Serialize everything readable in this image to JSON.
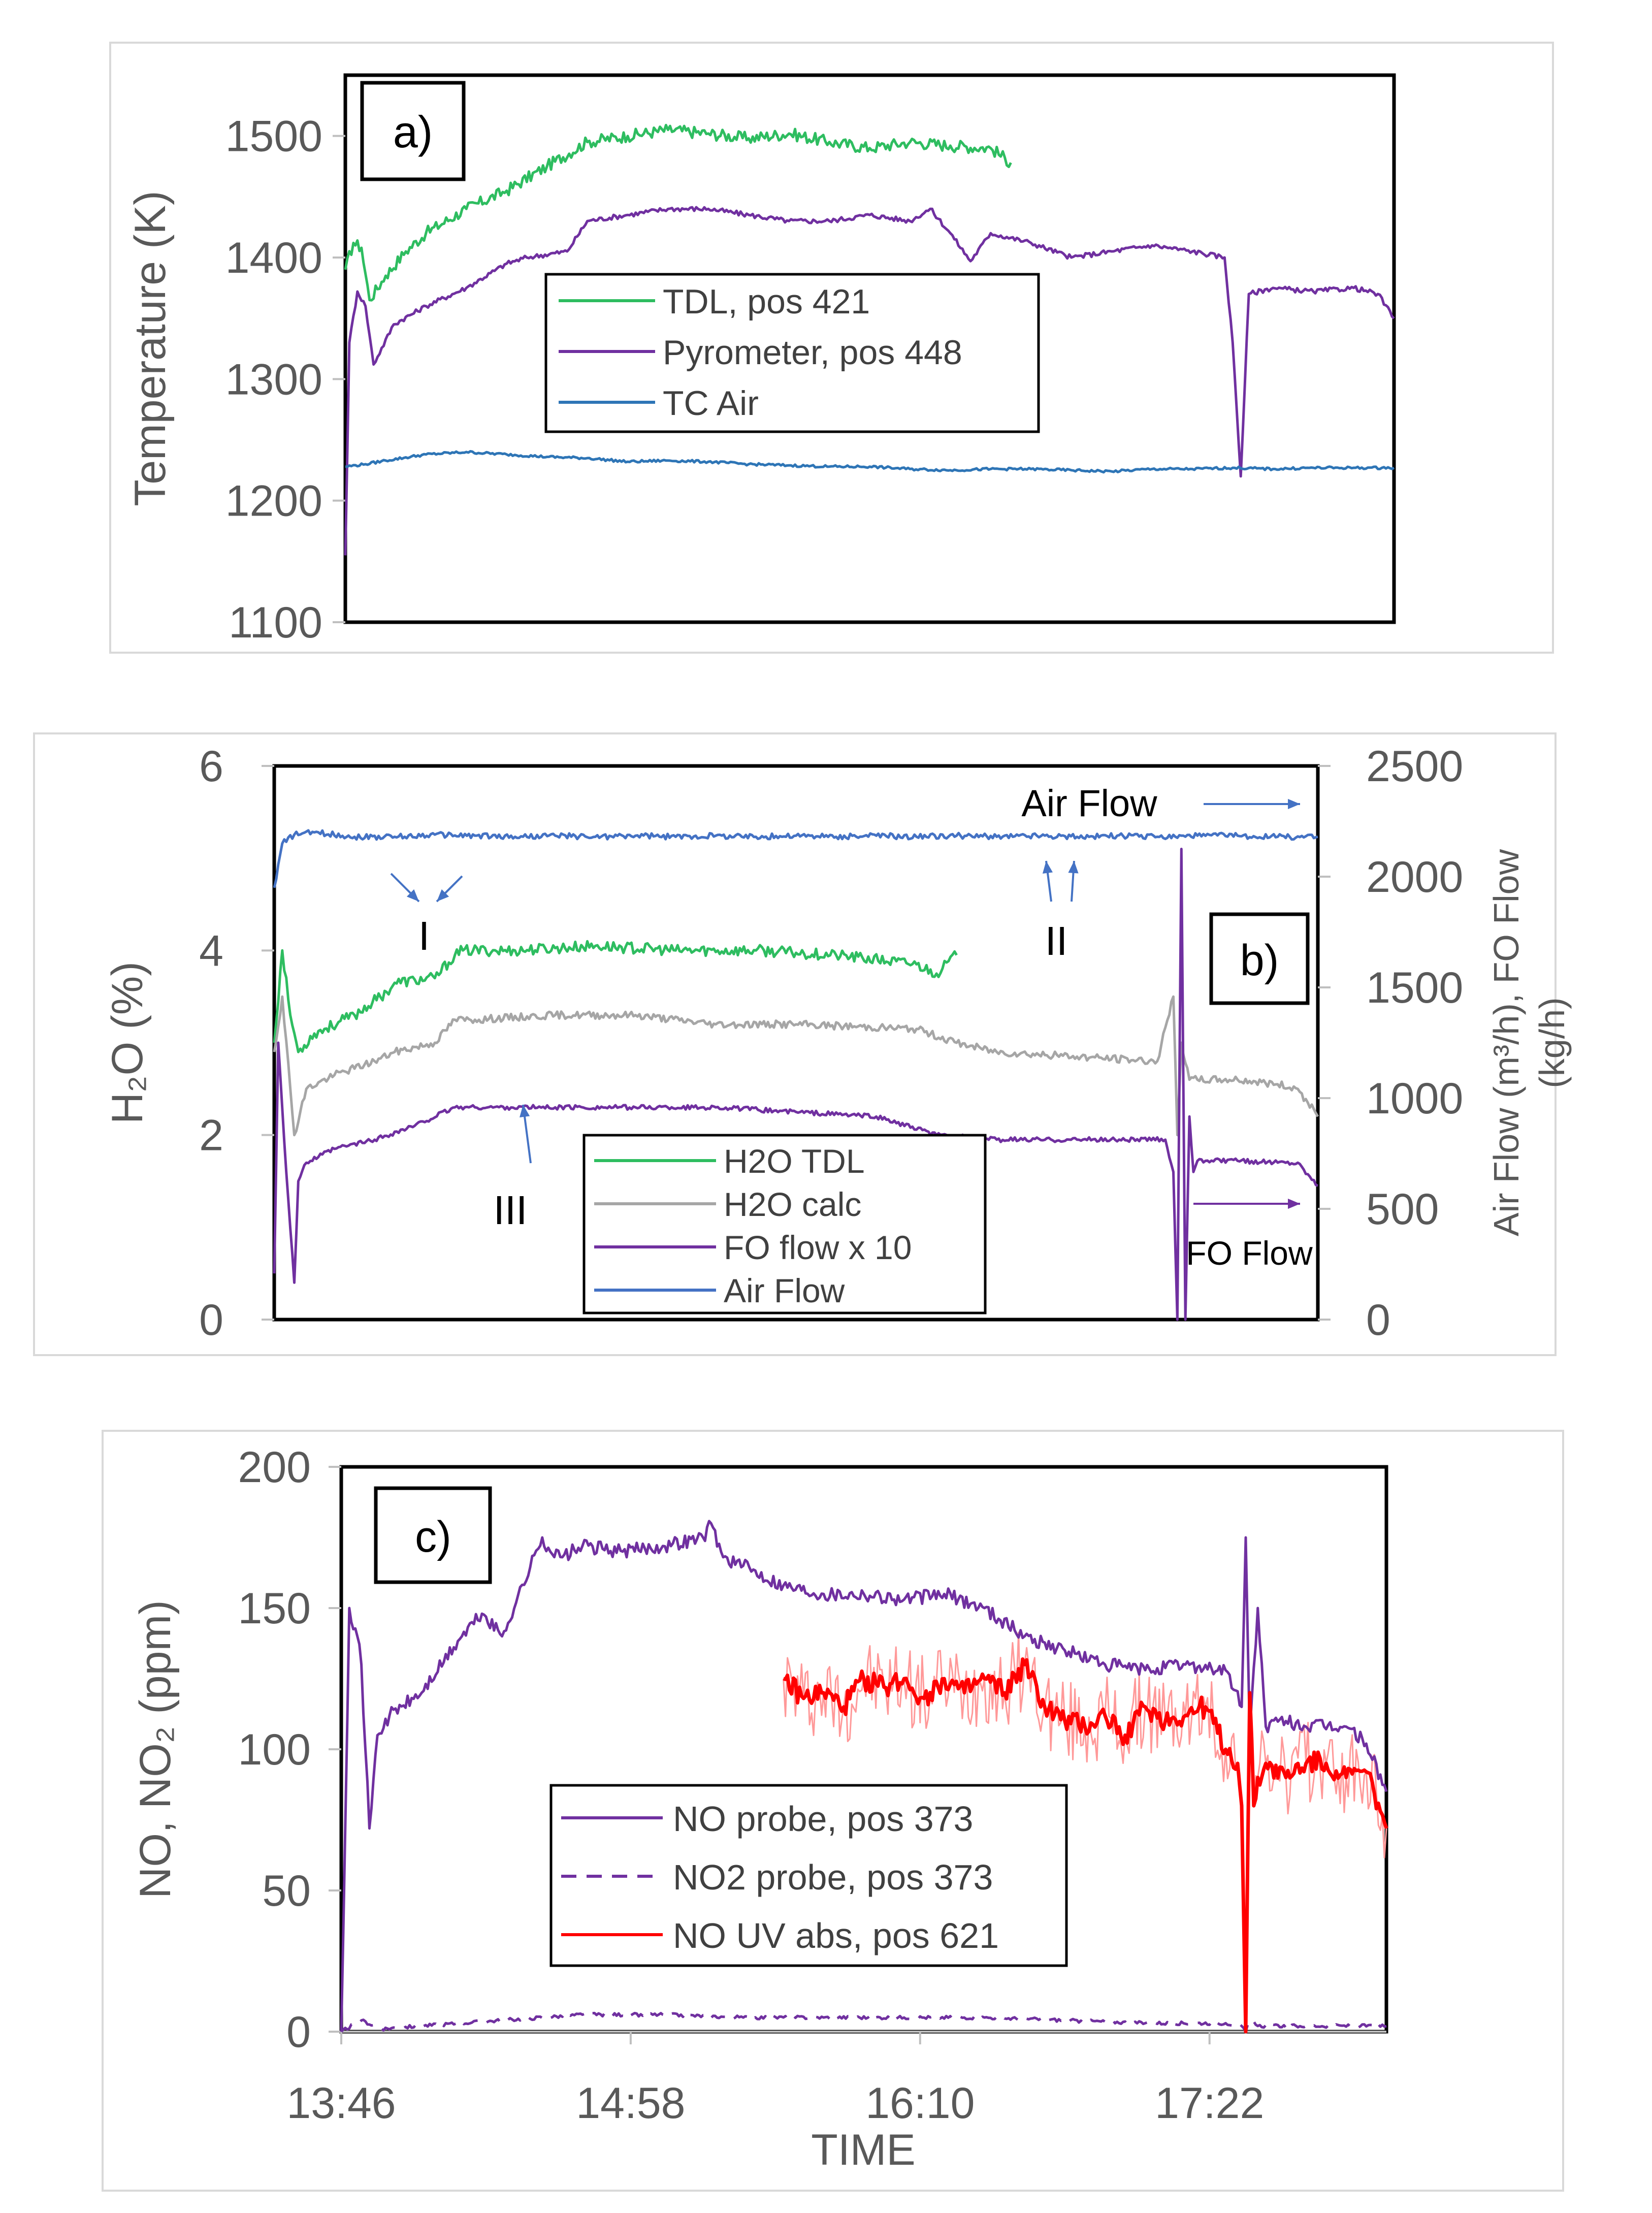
{
  "chart_data": [
    {
      "panel": "a",
      "type": "line",
      "label": "a)",
      "ylabel": "Temperature (K)",
      "ylim": [
        1100,
        1550
      ],
      "yticks": [
        1100,
        1200,
        1300,
        1400,
        1500
      ],
      "x_unit": "minutes since 13:46",
      "xlim": [
        0,
        260
      ],
      "legend": [
        "TDL, pos 421",
        "Pyrometer, pos 448",
        "TC Air"
      ],
      "series": [
        {
          "name": "TDL, pos 421",
          "color": "#2ebd60",
          "x": [
            0,
            2,
            4,
            6,
            10,
            15,
            20,
            30,
            40,
            50,
            60,
            70,
            80,
            90,
            100,
            110,
            120,
            130,
            140,
            150,
            160,
            165
          ],
          "y": [
            1390,
            1412,
            1408,
            1365,
            1385,
            1405,
            1420,
            1440,
            1455,
            1475,
            1495,
            1500,
            1505,
            1502,
            1498,
            1502,
            1495,
            1490,
            1495,
            1492,
            1490,
            1478
          ]
        },
        {
          "name": "Pyrometer, pos 448",
          "color": "#7030a0",
          "x": [
            0,
            1,
            3,
            5,
            7,
            12,
            20,
            30,
            40,
            45,
            55,
            60,
            70,
            80,
            90,
            100,
            110,
            120,
            130,
            140,
            145,
            150,
            155,
            160,
            170,
            180,
            190,
            200,
            210,
            218,
            220,
            222,
            224,
            230,
            240,
            250,
            256,
            260
          ],
          "y": [
            1155,
            1330,
            1372,
            1360,
            1312,
            1345,
            1360,
            1375,
            1395,
            1400,
            1405,
            1430,
            1435,
            1440,
            1440,
            1435,
            1430,
            1430,
            1435,
            1430,
            1440,
            1420,
            1397,
            1420,
            1412,
            1400,
            1405,
            1410,
            1405,
            1400,
            1330,
            1220,
            1370,
            1375,
            1372,
            1375,
            1370,
            1350
          ]
        },
        {
          "name": "TC Air",
          "color": "#2e75b6",
          "x": [
            0,
            5,
            10,
            20,
            30,
            40,
            50,
            60,
            70,
            80,
            90,
            100,
            110,
            120,
            130,
            140,
            150,
            160,
            170,
            180,
            190,
            200,
            210,
            220,
            230,
            240,
            250,
            260
          ],
          "y": [
            1228,
            1230,
            1233,
            1238,
            1240,
            1238,
            1236,
            1235,
            1232,
            1233,
            1232,
            1230,
            1229,
            1228,
            1228,
            1226,
            1225,
            1226,
            1226,
            1225,
            1224,
            1226,
            1226,
            1227,
            1226,
            1227,
            1227,
            1227
          ]
        }
      ]
    },
    {
      "panel": "b",
      "type": "line",
      "label": "b)",
      "ylabel": "H₂O (%)",
      "ylim": [
        0,
        6
      ],
      "yticks": [
        0,
        2,
        4,
        6
      ],
      "y2label_line1": "Air  Flow (m³/h), FO Flow",
      "y2label_line2": "(kg/h)",
      "y2lim": [
        0,
        2500
      ],
      "y2ticks": [
        0,
        500,
        1000,
        1500,
        2000,
        2500
      ],
      "x_unit": "minutes since 13:46",
      "xlim": [
        0,
        260
      ],
      "legend": [
        "H2O TDL",
        "H2O calc",
        "FO flow x 10",
        "Air Flow"
      ],
      "annotations": {
        "I": "I",
        "II": "II",
        "III": "III",
        "air_flow": "Air Flow",
        "fo_flow": "FO Flow"
      },
      "series": [
        {
          "name": "H2O TDL",
          "color": "#2ebd60",
          "axis": "left",
          "x": [
            0,
            2,
            4,
            6,
            10,
            20,
            28,
            30,
            40,
            45,
            47,
            60,
            80,
            100,
            120,
            140,
            160,
            165,
            170
          ],
          "y": [
            3.0,
            4.0,
            3.3,
            2.9,
            3.1,
            3.3,
            3.55,
            3.65,
            3.7,
            3.95,
            4.0,
            4.0,
            4.05,
            4.0,
            4.0,
            3.95,
            3.85,
            3.75,
            3.95
          ]
        },
        {
          "name": "H2O calc",
          "color": "#a6a6a6",
          "axis": "left",
          "x": [
            0,
            2,
            5,
            8,
            15,
            25,
            30,
            40,
            45,
            50,
            70,
            90,
            110,
            130,
            160,
            170,
            180,
            200,
            220,
            224,
            225,
            226,
            228,
            230,
            240,
            250,
            255,
            260
          ],
          "y": [
            2.9,
            3.5,
            2.0,
            2.5,
            2.65,
            2.8,
            2.9,
            3.0,
            3.25,
            3.25,
            3.3,
            3.3,
            3.2,
            3.2,
            3.15,
            3.0,
            2.9,
            2.85,
            2.8,
            3.5,
            2.0,
            3.0,
            2.6,
            2.6,
            2.6,
            2.55,
            2.5,
            2.2
          ]
        },
        {
          "name": "FO flow x 10",
          "color": "#7030a0",
          "axis": "left",
          "x": [
            0,
            1,
            3,
            5,
            6,
            8,
            15,
            25,
            35,
            45,
            50,
            70,
            90,
            110,
            130,
            150,
            165,
            180,
            200,
            222,
            224,
            225,
            226,
            227,
            228,
            229,
            230,
            232,
            240,
            255,
            258,
            260
          ],
          "y": [
            0.5,
            3.0,
            1.6,
            0.4,
            1.5,
            1.7,
            1.85,
            1.95,
            2.1,
            2.3,
            2.3,
            2.3,
            2.3,
            2.3,
            2.25,
            2.2,
            2.0,
            1.95,
            1.95,
            1.95,
            1.6,
            0.0,
            5.1,
            0.0,
            2.2,
            1.6,
            1.72,
            1.72,
            1.72,
            1.7,
            1.55,
            1.45
          ]
        },
        {
          "name": "Air Flow",
          "color": "#4472c4",
          "axis": "right",
          "x": [
            0,
            2,
            5,
            10,
            20,
            30,
            40,
            50,
            60,
            70,
            80,
            90,
            100,
            110,
            120,
            130,
            140,
            150,
            160,
            170,
            180,
            190,
            200,
            210,
            220,
            230,
            240,
            250,
            260
          ],
          "y": [
            1950,
            2150,
            2190,
            2200,
            2180,
            2180,
            2190,
            2185,
            2180,
            2185,
            2180,
            2185,
            2180,
            2185,
            2180,
            2185,
            2180,
            2185,
            2180,
            2185,
            2180,
            2185,
            2180,
            2185,
            2180,
            2185,
            2185,
            2180,
            2180
          ]
        }
      ]
    },
    {
      "panel": "c",
      "type": "line",
      "label": "c)",
      "ylabel": "NO, NO₂ (ppm)",
      "xlabel": "TIME",
      "ylim": [
        0,
        200
      ],
      "yticks": [
        0,
        50,
        100,
        150,
        200
      ],
      "xlim": [
        0,
        260
      ],
      "x_unit": "minutes since 13:46",
      "xticks": [
        0,
        72,
        144,
        216
      ],
      "xticklabels": [
        "13:46",
        "14:58",
        "16:10",
        "17:22"
      ],
      "legend": [
        "NO probe, pos 373",
        "NO2 probe, pos 373",
        "NO UV abs, pos 621"
      ],
      "series": [
        {
          "name": "NO probe, pos 373",
          "color": "#7030a0",
          "style": "solid",
          "x": [
            0,
            2,
            4,
            5,
            6,
            7,
            9,
            12,
            20,
            30,
            35,
            40,
            50,
            52,
            55,
            60,
            70,
            80,
            90,
            92,
            95,
            100,
            110,
            120,
            130,
            140,
            150,
            160,
            170,
            180,
            190,
            200,
            210,
            220,
            224,
            225,
            226,
            228,
            230,
            235,
            240,
            250,
            255,
            260
          ],
          "y": [
            0,
            150,
            140,
            130,
            100,
            72,
            105,
            112,
            120,
            140,
            148,
            140,
            175,
            170,
            168,
            172,
            170,
            172,
            175,
            180,
            168,
            165,
            158,
            155,
            155,
            153,
            155,
            150,
            140,
            135,
            130,
            128,
            130,
            128,
            115,
            175,
            105,
            150,
            108,
            110,
            108,
            108,
            102,
            85
          ]
        },
        {
          "name": "NO2 probe, pos 373",
          "color": "#7030a0",
          "style": "dashed",
          "x": [
            0,
            5,
            10,
            20,
            40,
            60,
            80,
            100,
            120,
            140,
            160,
            180,
            200,
            220,
            224,
            225,
            226,
            228,
            240,
            260
          ],
          "y": [
            0,
            4,
            1,
            2,
            4,
            6,
            6,
            5,
            5,
            5,
            5,
            4,
            3,
            3,
            2,
            0,
            4,
            2,
            2,
            2
          ]
        },
        {
          "name": "NO UV abs, pos 621",
          "color": "#ff0000",
          "style": "solid",
          "x": [
            110,
            115,
            120,
            125,
            130,
            135,
            140,
            145,
            150,
            155,
            160,
            165,
            170,
            175,
            180,
            185,
            190,
            195,
            200,
            205,
            210,
            215,
            220,
            223,
            224,
            225,
            226,
            227,
            228,
            230,
            235,
            240,
            245,
            250,
            255,
            260
          ],
          "y": [
            125,
            118,
            120,
            115,
            125,
            122,
            125,
            118,
            125,
            120,
            125,
            120,
            130,
            115,
            110,
            108,
            112,
            105,
            115,
            110,
            112,
            115,
            100,
            95,
            80,
            0,
            120,
            80,
            90,
            95,
            90,
            95,
            95,
            90,
            92,
            72
          ]
        }
      ]
    }
  ]
}
